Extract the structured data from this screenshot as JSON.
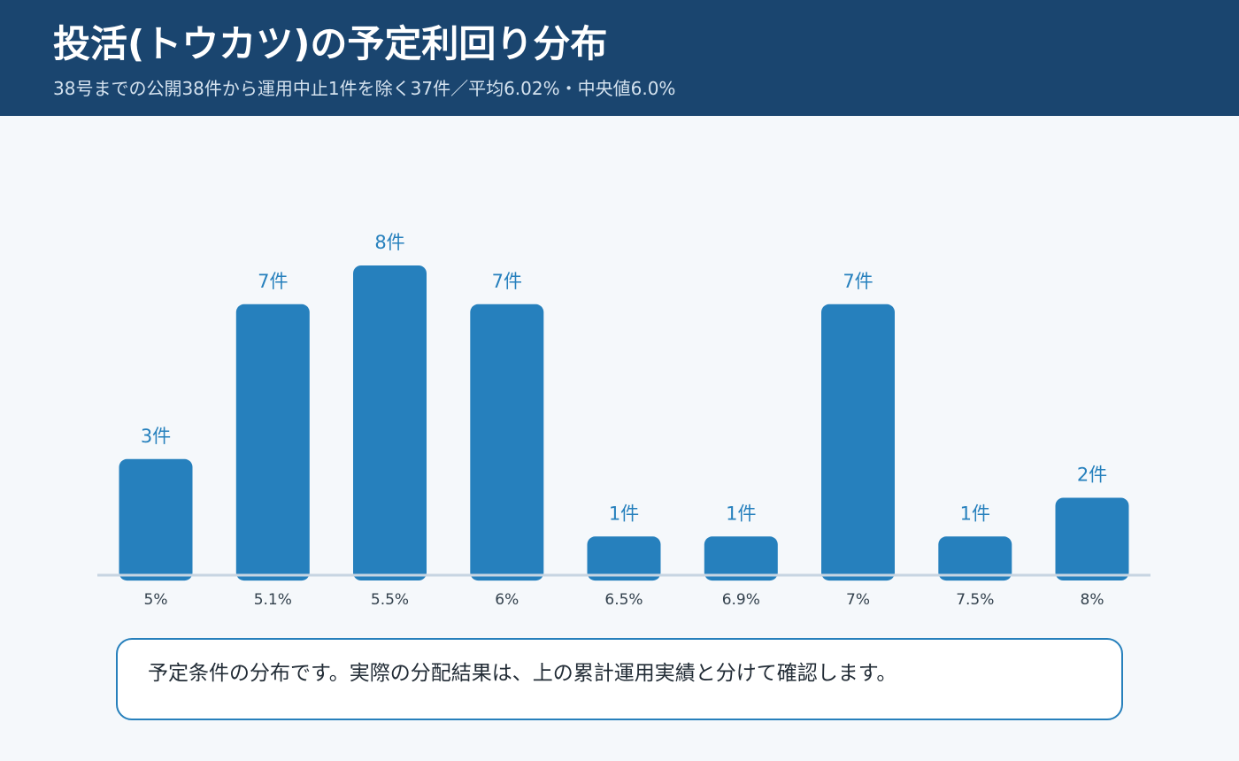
{
  "header": {
    "title": "投活(トウカツ)の予定利回り分布",
    "subtitle": "38号までの公開38件から運用中止1件を除く37件／平均6.02%・中央値6.0%"
  },
  "chart_data": {
    "type": "bar",
    "categories": [
      "5%",
      "5.1%",
      "5.5%",
      "6%",
      "6.5%",
      "6.9%",
      "7%",
      "7.5%",
      "8%"
    ],
    "values": [
      3,
      7,
      8,
      7,
      1,
      1,
      7,
      1,
      2
    ],
    "data_labels": [
      "3件",
      "7件",
      "8件",
      "7件",
      "1件",
      "1件",
      "7件",
      "1件",
      "2件"
    ],
    "ylim": [
      0,
      8
    ],
    "grid": false,
    "legend": "none",
    "colors": {
      "bar": "#2680bd",
      "label": "#2680bd",
      "axis": "#c7d5e2"
    }
  },
  "note": {
    "text": "予定条件の分布です。実際の分配結果は、上の累計運用実績と分けて確認します。"
  },
  "colors": {
    "header_bg": "#1a456f",
    "page_bg": "#f5f8fb",
    "accent": "#2780bc"
  }
}
